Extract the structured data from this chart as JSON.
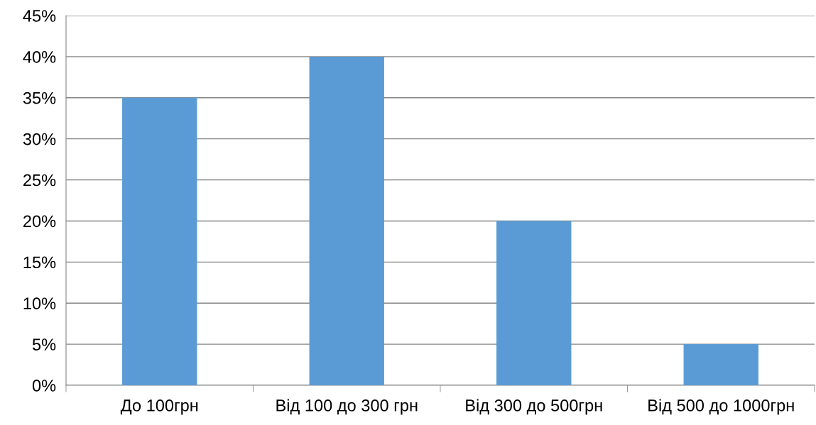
{
  "chart_data": {
    "type": "bar",
    "categories": [
      "До 100грн",
      "Від 100 до 300 грн",
      "Від 300 до 500грн",
      "Від 500 до 1000грн"
    ],
    "values": [
      35,
      40,
      20,
      5
    ],
    "color": "#5b9bd5",
    "ylim": [
      0,
      45
    ],
    "yticks": [
      {
        "value": 0,
        "label": "0%"
      },
      {
        "value": 5,
        "label": "5%"
      },
      {
        "value": 10,
        "label": "10%"
      },
      {
        "value": 15,
        "label": "15%"
      },
      {
        "value": 20,
        "label": "20%"
      },
      {
        "value": 25,
        "label": "25%"
      },
      {
        "value": 30,
        "label": "30%"
      },
      {
        "value": 35,
        "label": "35%"
      },
      {
        "value": 40,
        "label": "40%"
      },
      {
        "value": 45,
        "label": "45%"
      }
    ],
    "grid": "y"
  }
}
